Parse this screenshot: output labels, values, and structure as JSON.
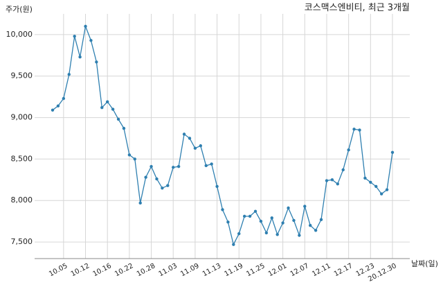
{
  "chart_data": {
    "type": "line",
    "title": "코스맥스엔비티, 최근 3개월",
    "ylabel": "주가(원)",
    "xlabel": "날짜(일)",
    "ylim": [
      7300,
      10250
    ],
    "yticks": [
      7500,
      8000,
      8500,
      9000,
      9500,
      10000
    ],
    "ytick_labels": [
      "7,500",
      "8,000",
      "8,500",
      "9,000",
      "9,500",
      "10,000"
    ],
    "xtick_labels": [
      "10.05",
      "10.12",
      "10.16",
      "10.22",
      "10.28",
      "11.03",
      "11.09",
      "11.13",
      "11.19",
      "11.25",
      "12.01",
      "12.07",
      "12.11",
      "12.17",
      "12.23",
      "20.12.30"
    ],
    "xtick_index": [
      2,
      6,
      10,
      14,
      18,
      22,
      26,
      30,
      34,
      38,
      42,
      46,
      50,
      54,
      58,
      62
    ],
    "grid": true,
    "color": "#2e7fb0",
    "values": [
      9090,
      9140,
      9230,
      9520,
      9980,
      9730,
      10100,
      9930,
      9670,
      9120,
      9190,
      9100,
      8980,
      8870,
      8550,
      8500,
      7970,
      8280,
      8410,
      8260,
      8150,
      8180,
      8400,
      8410,
      8800,
      8750,
      8630,
      8660,
      8420,
      8440,
      8170,
      7890,
      7740,
      7470,
      7600,
      7810,
      7810,
      7870,
      7750,
      7610,
      7790,
      7590,
      7730,
      7910,
      7760,
      7580,
      7930,
      7700,
      7640,
      7770,
      8240,
      8250,
      8200,
      8370,
      8610,
      8860,
      8850,
      8270,
      8220,
      8170,
      8080,
      8130,
      8580
    ]
  }
}
